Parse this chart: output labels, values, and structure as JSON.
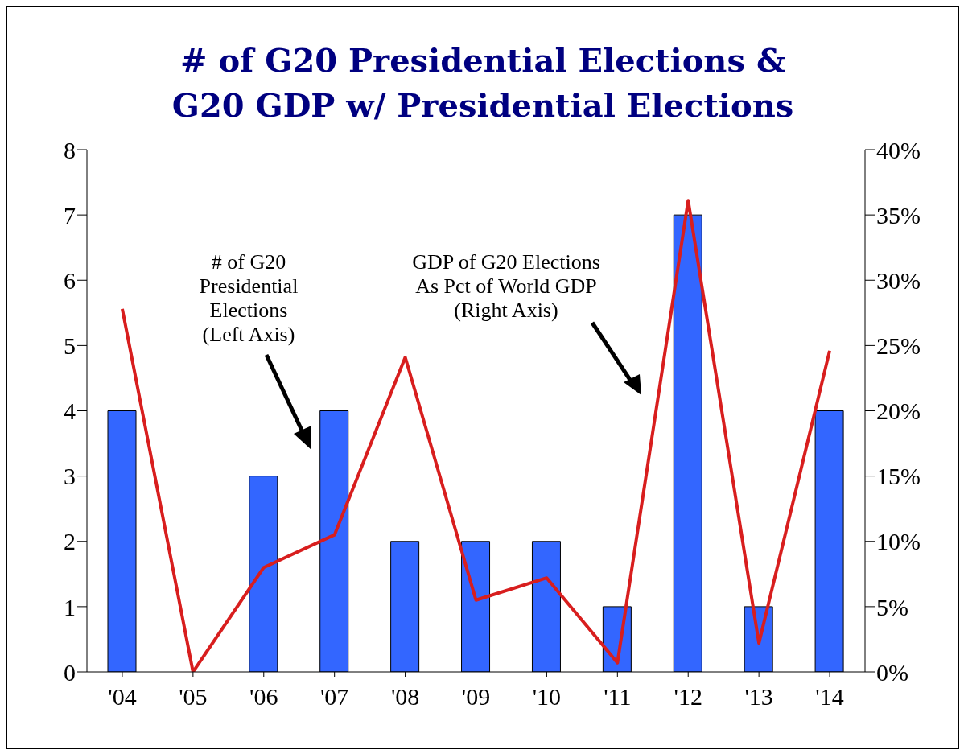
{
  "chart_data": {
    "type": "bar",
    "title": "# of G20 Presidential Elections &\nG20 GDP w/ Presidential Elections",
    "categories": [
      "'04",
      "'05",
      "'06",
      "'07",
      "'08",
      "'09",
      "'10",
      "'11",
      "'12",
      "'13",
      "'14"
    ],
    "series": [
      {
        "color": "#3366ff",
        "values": [
          4,
          0,
          3,
          4,
          2,
          2,
          2,
          1,
          7,
          1,
          4
        ]
      },
      {
        "type": "line",
        "axis": "y2",
        "color": "#d81e1e",
        "values": [
          27.8,
          0,
          8,
          10.5,
          24.1,
          5.5,
          7.2,
          0.7,
          36.1,
          2.2,
          24.6
        ]
      }
    ],
    "ylim": [
      0,
      8
    ],
    "yticks": [
      0,
      1,
      2,
      3,
      4,
      5,
      6,
      7,
      8
    ],
    "y2lim": [
      0,
      40
    ],
    "y2ticks": [
      {
        "value": 0,
        "label": "0%"
      },
      {
        "value": 5,
        "label": "5%"
      },
      {
        "value": 10,
        "label": "10%"
      },
      {
        "value": 15,
        "label": "15%"
      },
      {
        "value": 20,
        "label": "20%"
      },
      {
        "value": 25,
        "label": "25%"
      },
      {
        "value": 30,
        "label": "30%"
      },
      {
        "value": 35,
        "label": "35%"
      },
      {
        "value": 40,
        "label": "40%"
      }
    ],
    "annotations": [
      "# of G20\nPresidential\nElections\n(Left Axis)",
      "GDP of G20 Elections\nAs Pct of World GDP\n(Right Axis)"
    ],
    "marker": "none",
    "grid": false,
    "legend": false
  }
}
